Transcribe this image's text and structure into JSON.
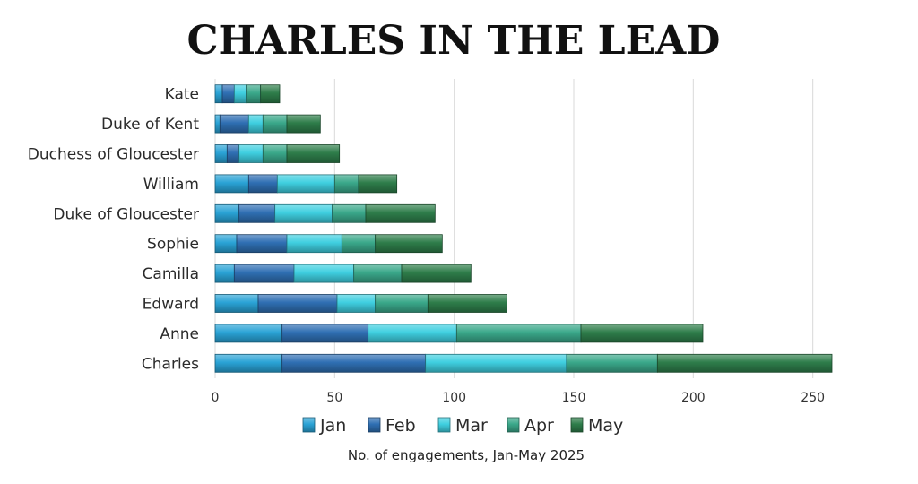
{
  "chart_data": {
    "type": "bar",
    "orientation": "horizontal",
    "stacked": true,
    "title": "CHARLES IN THE LEAD",
    "xlabel": "No. of engagements, Jan-May 2025",
    "ylabel": "",
    "xlim": [
      0,
      258
    ],
    "xticks": [
      0,
      50,
      100,
      150,
      200,
      250
    ],
    "grid": true,
    "legend_position": "bottom",
    "categories": [
      "Charles",
      "Anne",
      "Edward",
      "Camilla",
      "Sophie",
      "Duke of Gloucester",
      "William",
      "Duchess of Gloucester",
      "Duke of Kent",
      "Kate"
    ],
    "series": [
      {
        "name": "Jan",
        "color": "#2aa3d6",
        "values": [
          28,
          28,
          18,
          8,
          9,
          10,
          14,
          5,
          2,
          3
        ]
      },
      {
        "name": "Feb",
        "color": "#2f6fb3",
        "values": [
          60,
          36,
          33,
          25,
          21,
          15,
          12,
          5,
          12,
          5
        ]
      },
      {
        "name": "Mar",
        "color": "#3fcfe0",
        "values": [
          59,
          37,
          16,
          25,
          23,
          24,
          24,
          10,
          6,
          5
        ]
      },
      {
        "name": "Apr",
        "color": "#3aa88a",
        "values": [
          38,
          52,
          22,
          20,
          14,
          14,
          10,
          10,
          10,
          6
        ]
      },
      {
        "name": "May",
        "color": "#2e7d4a",
        "values": [
          73,
          51,
          33,
          29,
          28,
          29,
          16,
          22,
          14,
          8
        ]
      }
    ]
  }
}
